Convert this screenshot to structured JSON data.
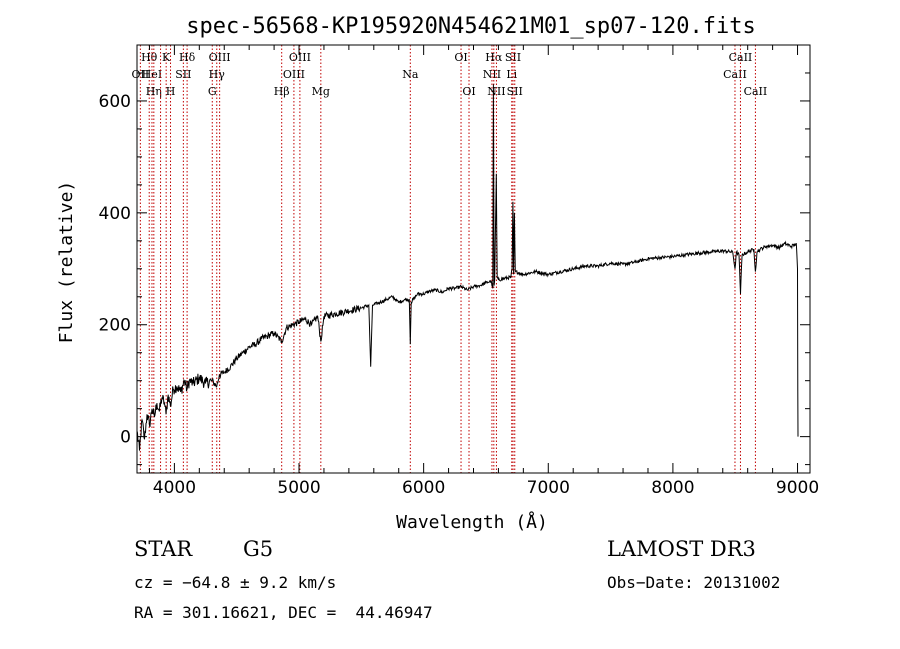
{
  "chart_data": {
    "type": "line",
    "title": "spec-56568-KP195920N454621M01_sp07-120.fits",
    "xlabel": "Wavelength (Å)",
    "ylabel": "Flux (relative)",
    "xlim": [
      3700,
      9100
    ],
    "ylim": [
      -65,
      700
    ],
    "xticks": [
      4000,
      5000,
      6000,
      7000,
      8000,
      9000
    ],
    "xtick_labels": [
      "4000",
      "5000",
      "6000",
      "7000",
      "8000",
      "9000"
    ],
    "yticks": [
      0,
      200,
      400,
      600
    ],
    "ytick_labels": [
      "0",
      "200",
      "400",
      "600"
    ],
    "line_color": "#000000",
    "marker_color": "#c00000",
    "series": [
      {
        "name": "flux",
        "points": [
          [
            3700,
            10
          ],
          [
            3720,
            -25
          ],
          [
            3740,
            30
          ],
          [
            3760,
            -5
          ],
          [
            3780,
            40
          ],
          [
            3800,
            20
          ],
          [
            3820,
            50
          ],
          [
            3840,
            35
          ],
          [
            3860,
            60
          ],
          [
            3880,
            45
          ],
          [
            3900,
            70
          ],
          [
            3920,
            60
          ],
          [
            3933,
            40
          ],
          [
            3950,
            75
          ],
          [
            3968,
            55
          ],
          [
            3990,
            85
          ],
          [
            4020,
            90
          ],
          [
            4050,
            80
          ],
          [
            4080,
            100
          ],
          [
            4101,
            85
          ],
          [
            4120,
            100
          ],
          [
            4150,
            95
          ],
          [
            4200,
            105
          ],
          [
            4250,
            95
          ],
          [
            4300,
            100
          ],
          [
            4340,
            90
          ],
          [
            4360,
            110
          ],
          [
            4400,
            115
          ],
          [
            4450,
            125
          ],
          [
            4500,
            140
          ],
          [
            4550,
            150
          ],
          [
            4600,
            160
          ],
          [
            4650,
            165
          ],
          [
            4700,
            175
          ],
          [
            4750,
            180
          ],
          [
            4800,
            185
          ],
          [
            4861,
            170
          ],
          [
            4900,
            195
          ],
          [
            4950,
            200
          ],
          [
            5000,
            205
          ],
          [
            5050,
            210
          ],
          [
            5100,
            200
          ],
          [
            5150,
            215
          ],
          [
            5175,
            170
          ],
          [
            5200,
            215
          ],
          [
            5300,
            220
          ],
          [
            5400,
            225
          ],
          [
            5500,
            230
          ],
          [
            5560,
            235
          ],
          [
            5575,
            125
          ],
          [
            5590,
            235
          ],
          [
            5650,
            240
          ],
          [
            5700,
            245
          ],
          [
            5750,
            250
          ],
          [
            5800,
            240
          ],
          [
            5850,
            245
          ],
          [
            5885,
            245
          ],
          [
            5893,
            165
          ],
          [
            5900,
            240
          ],
          [
            5950,
            255
          ],
          [
            6000,
            255
          ],
          [
            6050,
            260
          ],
          [
            6100,
            262
          ],
          [
            6150,
            258
          ],
          [
            6200,
            265
          ],
          [
            6250,
            265
          ],
          [
            6300,
            268
          ],
          [
            6350,
            262
          ],
          [
            6400,
            268
          ],
          [
            6450,
            270
          ],
          [
            6500,
            275
          ],
          [
            6540,
            278
          ],
          [
            6555,
            265
          ],
          [
            6560,
            630
          ],
          [
            6565,
            270
          ],
          [
            6570,
            280
          ],
          [
            6583,
            470
          ],
          [
            6590,
            285
          ],
          [
            6600,
            280
          ],
          [
            6650,
            283
          ],
          [
            6700,
            285
          ],
          [
            6710,
            300
          ],
          [
            6716,
            420
          ],
          [
            6722,
            290
          ],
          [
            6728,
            400
          ],
          [
            6735,
            295
          ],
          [
            6800,
            290
          ],
          [
            6900,
            295
          ],
          [
            7000,
            290
          ],
          [
            7100,
            295
          ],
          [
            7200,
            300
          ],
          [
            7300,
            305
          ],
          [
            7400,
            305
          ],
          [
            7500,
            310
          ],
          [
            7600,
            308
          ],
          [
            7700,
            312
          ],
          [
            7800,
            318
          ],
          [
            7900,
            320
          ],
          [
            8000,
            322
          ],
          [
            8100,
            325
          ],
          [
            8200,
            328
          ],
          [
            8300,
            330
          ],
          [
            8400,
            332
          ],
          [
            8480,
            330
          ],
          [
            8498,
            300
          ],
          [
            8510,
            330
          ],
          [
            8530,
            325
          ],
          [
            8542,
            255
          ],
          [
            8555,
            325
          ],
          [
            8600,
            330
          ],
          [
            8650,
            335
          ],
          [
            8662,
            295
          ],
          [
            8675,
            330
          ],
          [
            8700,
            335
          ],
          [
            8750,
            340
          ],
          [
            8800,
            342
          ],
          [
            8850,
            338
          ],
          [
            8900,
            345
          ],
          [
            8950,
            340
          ],
          [
            8990,
            345
          ],
          [
            9000,
            300
          ],
          [
            9002,
            80
          ],
          [
            9004,
            0
          ]
        ]
      }
    ],
    "line_markers": [
      {
        "wl": 3727,
        "row": 1,
        "label": "OII"
      },
      {
        "wl": 3798,
        "row": 0,
        "label": "Hθ"
      },
      {
        "wl": 3820,
        "row": 1,
        "label": "HeI"
      },
      {
        "wl": 3835,
        "row": 2,
        "label": "Hη"
      },
      {
        "wl": 3889,
        "row": 2,
        "label": ""
      },
      {
        "wl": 3934,
        "row": 0,
        "label": "K"
      },
      {
        "wl": 3969,
        "row": 2,
        "label": "H"
      },
      {
        "wl": 4072,
        "row": 1,
        "label": "SII"
      },
      {
        "wl": 4102,
        "row": 0,
        "label": "Hδ"
      },
      {
        "wl": 4304,
        "row": 2,
        "label": "G"
      },
      {
        "wl": 4340,
        "row": 1,
        "label": "Hγ"
      },
      {
        "wl": 4363,
        "row": 0,
        "label": "OIII"
      },
      {
        "wl": 4861,
        "row": 2,
        "label": "Hβ"
      },
      {
        "wl": 4959,
        "row": 1,
        "label": "OIII"
      },
      {
        "wl": 5007,
        "row": 0,
        "label": "OIII"
      },
      {
        "wl": 5175,
        "row": 2,
        "label": "Mg"
      },
      {
        "wl": 5893,
        "row": 1,
        "label": "Na"
      },
      {
        "wl": 6300,
        "row": 0,
        "label": "OI"
      },
      {
        "wl": 6364,
        "row": 2,
        "label": "OI"
      },
      {
        "wl": 6548,
        "row": 1,
        "label": "NII"
      },
      {
        "wl": 6563,
        "row": 0,
        "label": "Hα"
      },
      {
        "wl": 6584,
        "row": 2,
        "label": "NII"
      },
      {
        "wl": 6707,
        "row": 1,
        "label": "Li"
      },
      {
        "wl": 6717,
        "row": 0,
        "label": "SII"
      },
      {
        "wl": 6731,
        "row": 2,
        "label": "SII"
      },
      {
        "wl": 8498,
        "row": 1,
        "label": "CaII"
      },
      {
        "wl": 8542,
        "row": 0,
        "label": "CaII"
      },
      {
        "wl": 8662,
        "row": 2,
        "label": "CaII"
      }
    ]
  },
  "info": {
    "object_type": "STAR",
    "subclass": "G5",
    "survey": "LAMOST DR3",
    "cz": "cz = −64.8 ± 9.2 km/s",
    "obs_date": "Obs−Date: 20131002",
    "radec": "RA = 301.16621, DEC =  44.46947"
  }
}
